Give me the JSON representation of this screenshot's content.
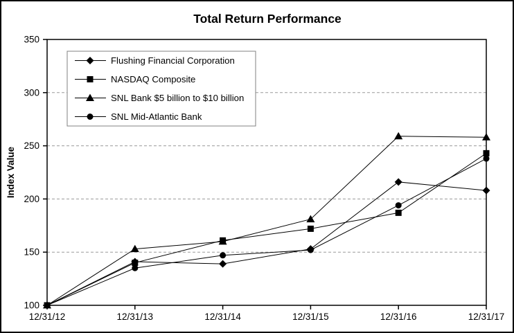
{
  "chart_data": {
    "type": "line",
    "title": "Total Return Performance",
    "xlabel": "",
    "ylabel": "Index Value",
    "categories": [
      "12/31/12",
      "12/31/13",
      "12/31/14",
      "12/31/15",
      "12/31/16",
      "12/31/17"
    ],
    "series": [
      {
        "name": "Flushing Financial Corporation",
        "marker": "diamond",
        "values": [
          100,
          141,
          139,
          153,
          216,
          208
        ]
      },
      {
        "name": "NASDAQ Composite",
        "marker": "square",
        "values": [
          100,
          140,
          161,
          172,
          187,
          243
        ]
      },
      {
        "name": "SNL Bank $5 billion to $10 billion",
        "marker": "triangle",
        "values": [
          100,
          153,
          160,
          181,
          259,
          258
        ]
      },
      {
        "name": "SNL Mid-Atlantic Bank",
        "marker": "circle",
        "values": [
          100,
          135,
          147,
          152,
          194,
          238
        ]
      }
    ],
    "ylim": [
      100,
      350
    ],
    "ytick_step": 50,
    "yticks": [
      100,
      150,
      200,
      250,
      300,
      350
    ],
    "grid": "horizontal-dashed",
    "legend_position": "top-left-inside"
  },
  "colors": {
    "series_line": "#000000",
    "marker_fill": "#000000",
    "grid_line": "#999999",
    "axis_line": "#000000",
    "outer_border": "#000000",
    "legend_border": "#808080",
    "background": "#ffffff"
  }
}
